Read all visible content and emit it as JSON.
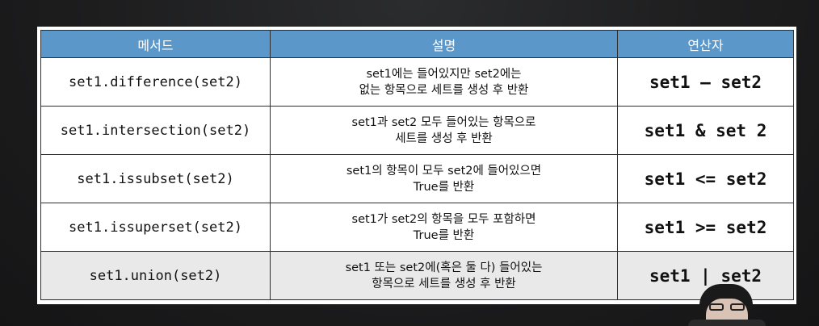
{
  "table": {
    "headers": {
      "method": "메서드",
      "description": "설명",
      "operator": "연산자"
    },
    "rows": [
      {
        "method": "set1.difference(set2)",
        "desc_line1": "set1에는 들어있지만 set2에는",
        "desc_line2": "없는 항목으로 세트를 생성 후 반환",
        "operator": "set1 – set2"
      },
      {
        "method": "set1.intersection(set2)",
        "desc_line1": "set1과 set2 모두 들어있는 항목으로",
        "desc_line2": "세트를 생성 후 반환",
        "operator": "set1 & set 2"
      },
      {
        "method": "set1.issubset(set2)",
        "desc_line1": "set1의 항목이 모두 set2에 들어있으면",
        "desc_line2": "True를 반환",
        "operator": "set1 <= set2"
      },
      {
        "method": "set1.issuperset(set2)",
        "desc_line1": "set1가 set2의 항목을 모두 포함하면",
        "desc_line2": "True를 반환",
        "operator": "set1 >= set2"
      },
      {
        "method": "set1.union(set2)",
        "desc_line1": "set1 또는 set2에(혹은 둘 다) 들어있는",
        "desc_line2": "항목으로 세트를 생성 후 반환",
        "operator": "set1 | set2"
      }
    ]
  },
  "colors": {
    "header_bg": "#5b97c9",
    "header_text": "#ffffff",
    "shaded_row_bg": "#e9e9e9",
    "page_bg": "#1f1f1f"
  }
}
